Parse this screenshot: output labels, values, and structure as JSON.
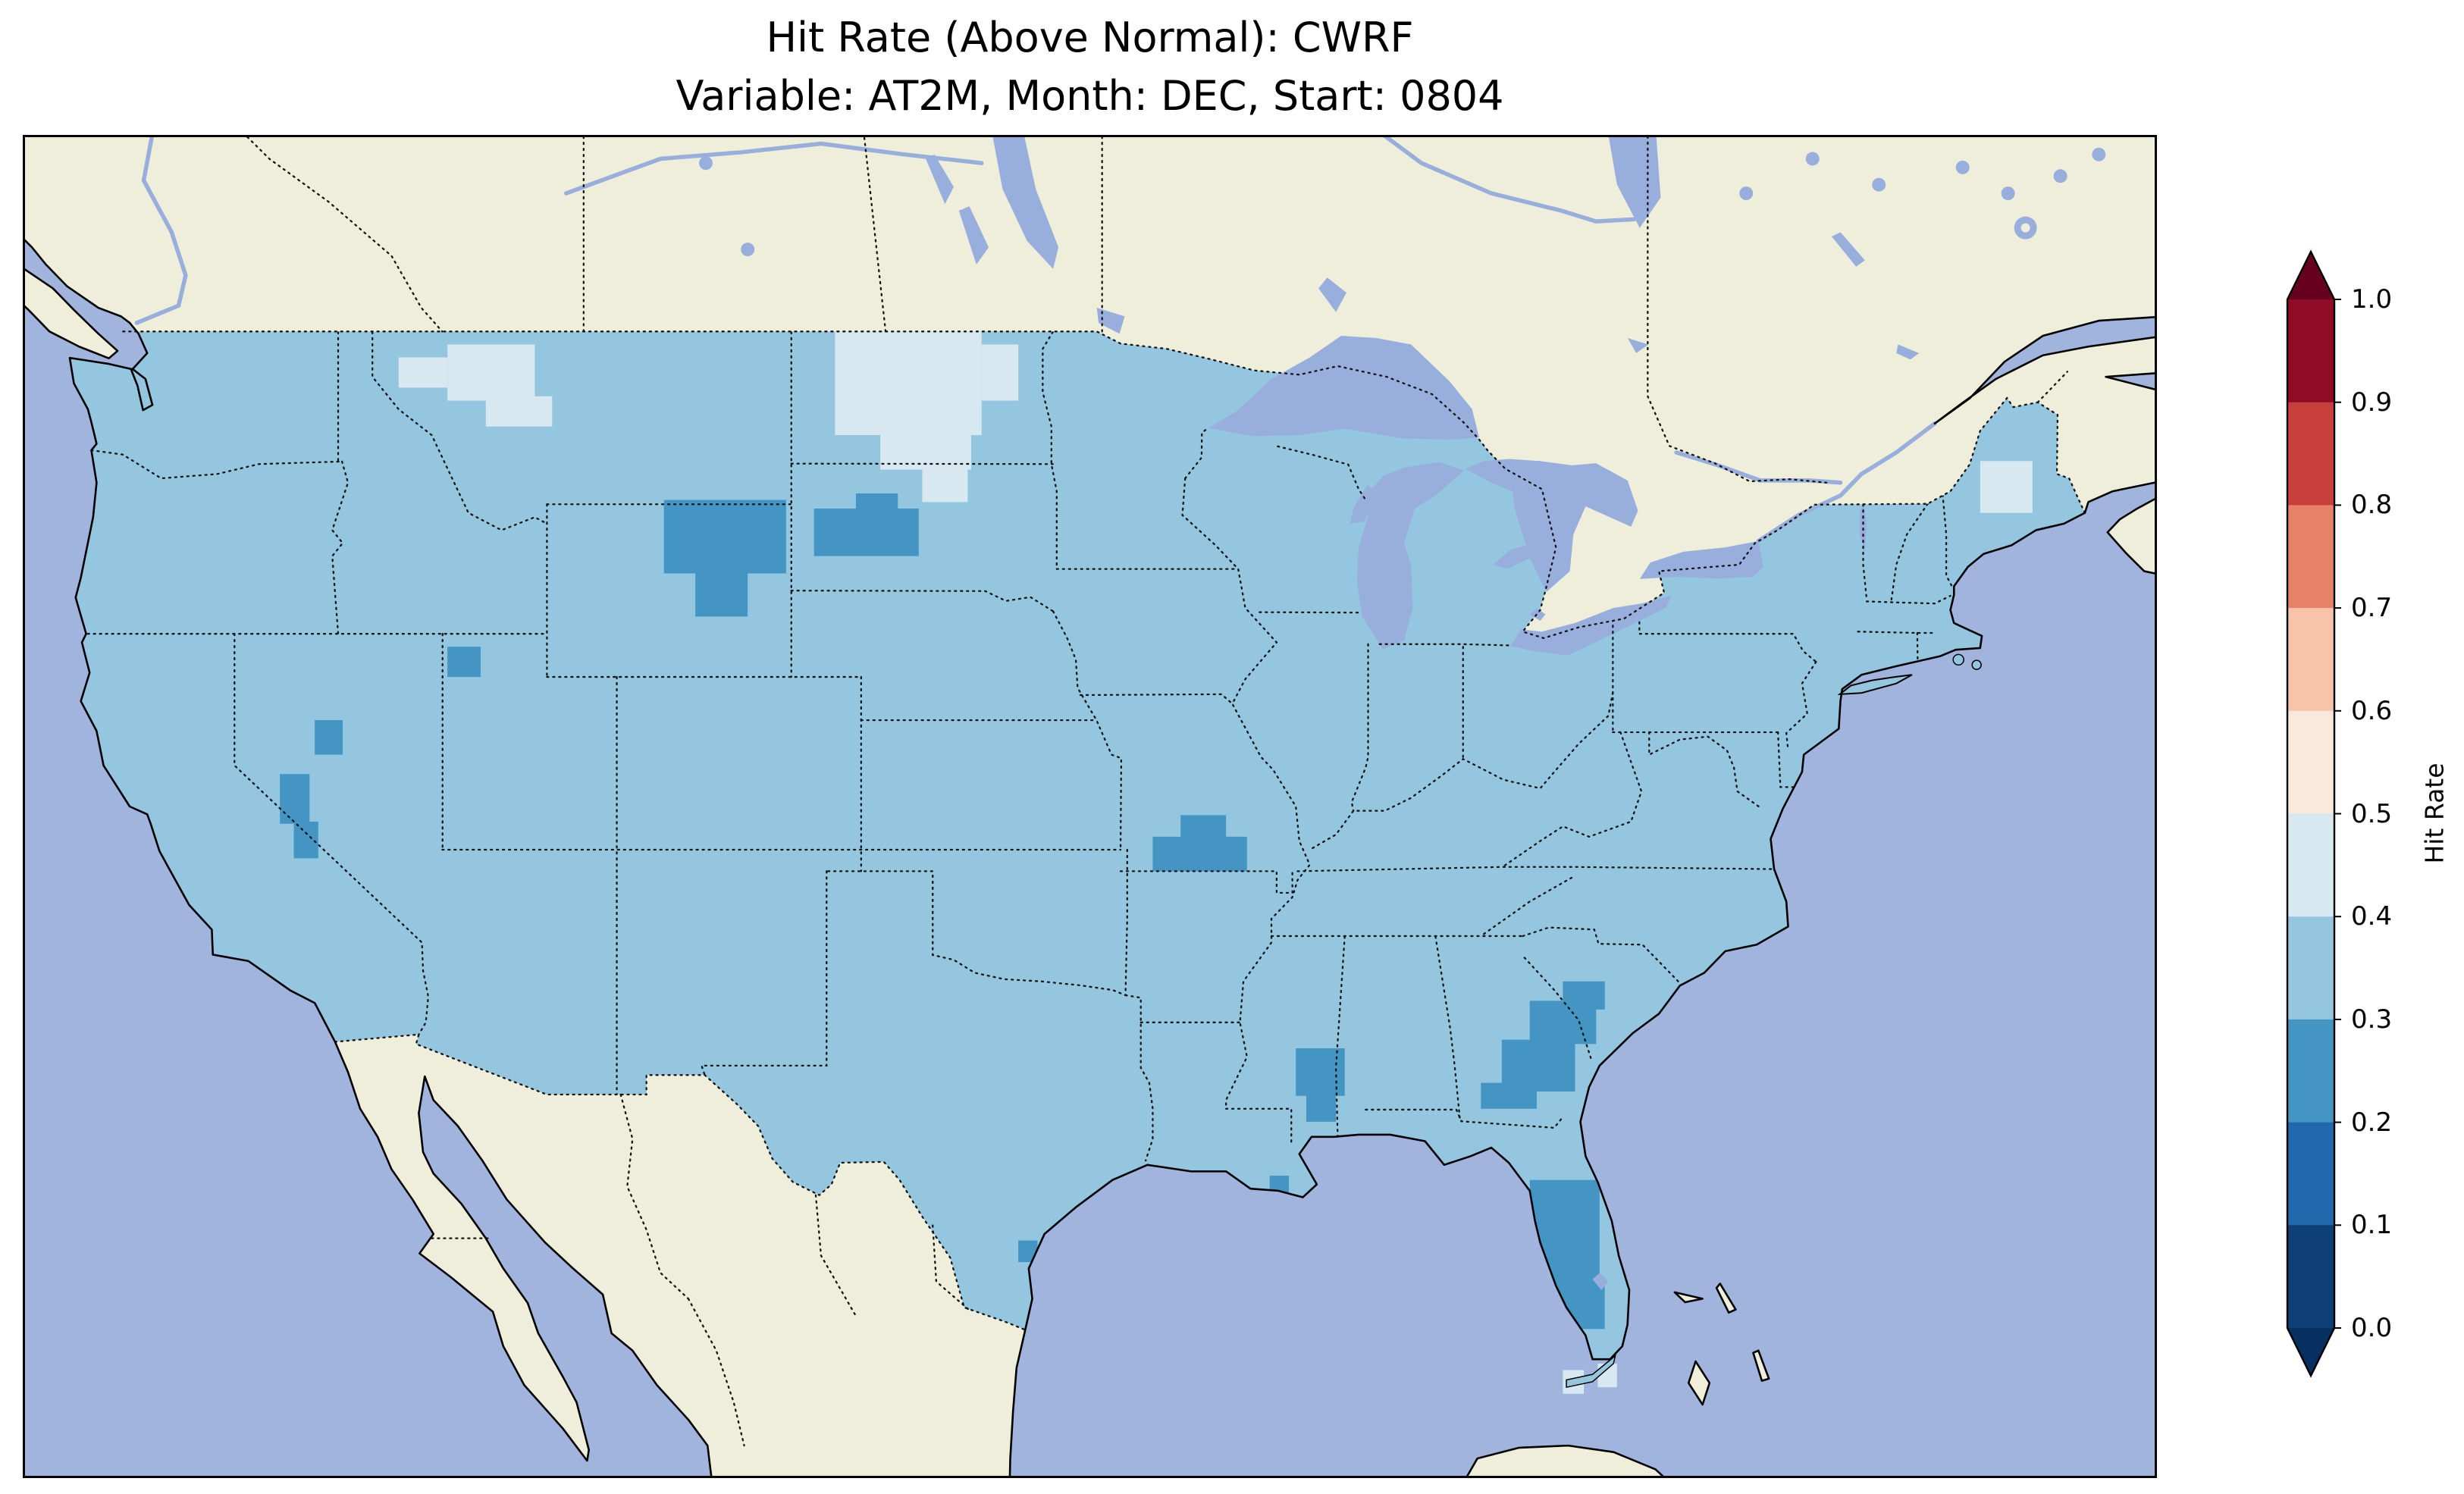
{
  "title": {
    "line1": "Hit Rate (Above Normal): CWRF",
    "line2": "Variable: AT2M, Month: DEC, Start: 0804"
  },
  "colorbar": {
    "label": "Hit Rate",
    "ticks": [
      "1.0",
      "0.9",
      "0.8",
      "0.7",
      "0.6",
      "0.5",
      "0.4",
      "0.3",
      "0.2",
      "0.1",
      "0.0"
    ],
    "band_colors_top_to_bottom": [
      "#8e0c25",
      "#c93f3c",
      "#e58267",
      "#f8c4a9",
      "#fae8dd",
      "#d8e8f1",
      "#94c6df",
      "#4494c4",
      "#2268ad",
      "#0f4075"
    ],
    "extend_over": "#67001f",
    "extend_under": "#053061"
  },
  "chart_data": {
    "type": "heatmap",
    "title": "Hit Rate (Above Normal): CWRF — Variable: AT2M, Month: DEC, Start: 0804",
    "colorbar_label": "Hit Rate",
    "value_range": [
      0.0,
      1.0
    ],
    "dominant_bin": "0.3-0.4",
    "notes": "CONUS field mostly 0.3-0.4; pockets of 0.2-0.3 over NE Wyoming, W South Dakota, Nevada, Ozarks, MS/AL, GA/SC coastal plain, Florida peninsula; 0.4-0.5 over W Montana and North Dakota"
  },
  "map": {
    "extent": {
      "lon_min": -126,
      "lon_max": -65,
      "lat_min": 22.5,
      "lat_max": 53.5
    },
    "colors": {
      "ocean": "#a0b4de",
      "land": "#efeeda",
      "lake": "#98aedd",
      "coast": "#000000",
      "border": "#141414",
      "hit_bins": {
        "0.2-0.3": "#4494c4",
        "0.3-0.4": "#94c6df",
        "0.4-0.5": "#d8e8f1"
      }
    },
    "patches": [
      {
        "bin": "0.4-0.5",
        "clip": true,
        "cells": [
          [
            -113.9,
            47.4,
            -111.4,
            48.7
          ],
          [
            -112.8,
            46.8,
            -110.9,
            47.5
          ],
          [
            -115.3,
            47.7,
            -113.9,
            48.4
          ],
          [
            -102.8,
            46.6,
            -98.6,
            49.0
          ],
          [
            -101.5,
            45.8,
            -98.9,
            46.7
          ],
          [
            -100.3,
            45.05,
            -99.0,
            45.9
          ],
          [
            -98.6,
            47.4,
            -97.55,
            48.7
          ],
          [
            -70.0,
            44.8,
            -68.5,
            46.0
          ]
        ]
      },
      {
        "bin": "0.2-0.3",
        "clip": true,
        "cells": [
          [
            -107.7,
            43.4,
            -104.2,
            45.1
          ],
          [
            -106.8,
            42.4,
            -105.3,
            43.5
          ],
          [
            -103.4,
            43.8,
            -100.4,
            44.9
          ],
          [
            -102.2,
            44.85,
            -101.0,
            45.25
          ],
          [
            -113.9,
            41.0,
            -112.95,
            41.7
          ],
          [
            -117.7,
            39.2,
            -116.9,
            40.0
          ],
          [
            -118.7,
            37.6,
            -117.85,
            38.75
          ],
          [
            -118.3,
            36.8,
            -117.6,
            37.65
          ],
          [
            -93.7,
            36.5,
            -91.0,
            37.3
          ],
          [
            -92.9,
            37.25,
            -91.6,
            37.8
          ],
          [
            -89.6,
            31.3,
            -88.2,
            32.4
          ],
          [
            -89.3,
            30.7,
            -88.45,
            31.35
          ],
          [
            -83.7,
            31.4,
            -81.6,
            32.6
          ],
          [
            -82.9,
            32.5,
            -81.0,
            33.5
          ],
          [
            -81.95,
            33.3,
            -80.75,
            33.95
          ],
          [
            -84.3,
            31.0,
            -82.7,
            31.6
          ],
          [
            -82.9,
            27.0,
            -80.9,
            29.35
          ],
          [
            -82.35,
            25.9,
            -80.75,
            27.1
          ],
          [
            -97.55,
            27.45,
            -97.0,
            27.95
          ],
          [
            -90.35,
            28.95,
            -89.8,
            29.45
          ]
        ]
      },
      {
        "bin": "0.4-0.5",
        "clip": false,
        "cells": [
          [
            -81.95,
            24.4,
            -81.35,
            24.95
          ],
          [
            -80.95,
            24.55,
            -80.4,
            25.1
          ]
        ]
      }
    ]
  }
}
